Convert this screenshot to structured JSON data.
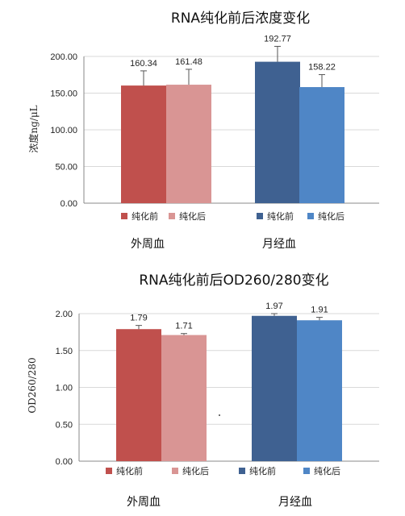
{
  "chart_data": [
    {
      "type": "bar",
      "title": "RNA纯化前后浓度变化",
      "ylabel": "浓度ng/μL",
      "ylim": [
        0,
        200
      ],
      "yticks": [
        "0.00",
        "50.00",
        "100.00",
        "150.00",
        "200.00"
      ],
      "groups": [
        "外周血",
        "月经血"
      ],
      "series": [
        {
          "name": "纯化前",
          "group": 0,
          "value": 160.34,
          "label": "160.34",
          "err": 20,
          "color": "#c0504d"
        },
        {
          "name": "纯化后",
          "group": 0,
          "value": 161.48,
          "label": "161.48",
          "err": 21,
          "color": "#d99594"
        },
        {
          "name": "纯化前",
          "group": 1,
          "value": 192.77,
          "label": "192.77",
          "err": 21,
          "color": "#3f6191"
        },
        {
          "name": "纯化后",
          "group": 1,
          "value": 158.22,
          "label": "158.22",
          "err": 17,
          "color": "#4f86c6"
        }
      ],
      "grid": true,
      "legend_position": "bottom"
    },
    {
      "type": "bar",
      "title": "RNA纯化前后OD260/280变化",
      "ylabel": "OD260/280",
      "ylim": [
        0,
        2
      ],
      "yticks": [
        "0.00",
        "0.50",
        "1.00",
        "1.50",
        "2.00"
      ],
      "groups": [
        "外周血",
        "月经血"
      ],
      "series": [
        {
          "name": "纯化前",
          "group": 0,
          "value": 1.79,
          "label": "1.79",
          "err": 0.05,
          "color": "#c0504d"
        },
        {
          "name": "纯化后",
          "group": 0,
          "value": 1.71,
          "label": "1.71",
          "err": 0.02,
          "color": "#d99594"
        },
        {
          "name": "纯化前",
          "group": 1,
          "value": 1.97,
          "label": "1.97",
          "err": 0.03,
          "color": "#3f6191"
        },
        {
          "name": "纯化后",
          "group": 1,
          "value": 1.91,
          "label": "1.91",
          "err": 0.04,
          "color": "#4f86c6"
        }
      ],
      "grid": true,
      "legend_position": "bottom"
    }
  ]
}
